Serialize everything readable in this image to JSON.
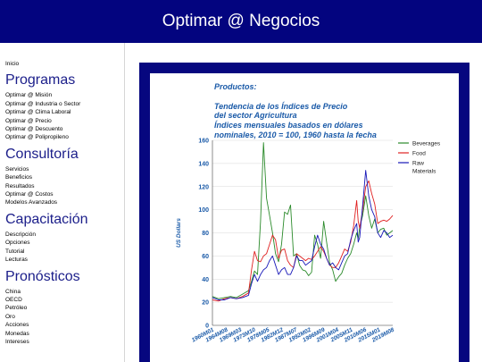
{
  "header": {
    "title": "Optimar @ Negocios"
  },
  "sidebar": {
    "home": "Inicio",
    "sections": [
      {
        "heading": "Programas",
        "items": [
          "Optimar @ Misión",
          "Optimar @ Industria o Sector",
          "Optimar @ Clima Laboral",
          "Optimar @ Precio",
          "Optimar @ Descuento",
          "Optimar @ Polipropileno"
        ]
      },
      {
        "heading": "Consultoría",
        "items": [
          "Servicios",
          "Beneficios",
          "Resultados",
          "Optimar @ Costos",
          "Modelos Avanzados"
        ]
      },
      {
        "heading": "Capacitación",
        "items": [
          "Descripción",
          "Opciones",
          "Tutorial",
          "Lecturas"
        ]
      },
      {
        "heading": "Pronósticos",
        "items": [
          "China",
          "OECD",
          "Petróleo",
          "Oro",
          "Acciones",
          "Monedas",
          "Intereses"
        ]
      }
    ]
  },
  "chart_data": {
    "type": "line",
    "title": [
      "Productos:",
      "",
      "Tendencia de los Índices de Precio",
      "del sector Agricultura",
      "Índices mensuales basados en dólares",
      "nominales, 2010 = 100, 1960 hasta la fecha"
    ],
    "xlabel": "",
    "ylabel": "US Dollars",
    "ylim": [
      0,
      160
    ],
    "yticks": [
      0,
      20,
      40,
      60,
      80,
      100,
      120,
      140,
      160
    ],
    "xticks": [
      "1960M01",
      "1964M08",
      "1969M03",
      "1973M10",
      "1978M05",
      "1982M12",
      "1987M07",
      "1992M02",
      "1996M09",
      "2001M04",
      "2005M11",
      "2010M06",
      "2015M01",
      "2019M08"
    ],
    "legend_position": "top-right",
    "x": [
      1960,
      1962,
      1964,
      1966,
      1968,
      1970,
      1972,
      1973,
      1974,
      1975,
      1976,
      1977,
      1978,
      1979,
      1980,
      1981,
      1982,
      1983,
      1984,
      1985,
      1986,
      1987,
      1988,
      1989,
      1990,
      1991,
      1992,
      1993,
      1994,
      1995,
      1996,
      1997,
      1998,
      1999,
      2000,
      2001,
      2002,
      2003,
      2004,
      2005,
      2006,
      2007,
      2008,
      2008.5,
      2009,
      2010,
      2011,
      2012,
      2013,
      2014,
      2015,
      2016,
      2017,
      2018,
      2019,
      2020
    ],
    "series": [
      {
        "name": "Beverages",
        "color": "#2a8a2a",
        "values": [
          25,
          23,
          24,
          25,
          24,
          27,
          30,
          38,
          47,
          44,
          90,
          158,
          110,
          95,
          80,
          62,
          55,
          70,
          98,
          96,
          104,
          60,
          62,
          52,
          48,
          47,
          43,
          46,
          78,
          70,
          58,
          90,
          72,
          54,
          48,
          38,
          42,
          45,
          52,
          58,
          62,
          70,
          80,
          75,
          85,
          95,
          112,
          95,
          84,
          92,
          80,
          83,
          84,
          78,
          80,
          82
        ]
      },
      {
        "name": "Food",
        "color": "#e02020",
        "values": [
          22,
          21,
          23,
          24,
          23,
          25,
          28,
          48,
          64,
          56,
          55,
          60,
          62,
          70,
          78,
          74,
          58,
          65,
          66,
          56,
          52,
          50,
          62,
          60,
          58,
          56,
          58,
          57,
          60,
          64,
          68,
          64,
          58,
          52,
          50,
          50,
          54,
          60,
          66,
          64,
          72,
          86,
          108,
          90,
          84,
          100,
          120,
          125,
          114,
          105,
          88,
          90,
          91,
          90,
          92,
          95
        ]
      },
      {
        "name": "Raw Materials",
        "color": "#1818b8",
        "values": [
          24,
          22,
          22,
          24,
          23,
          24,
          26,
          36,
          44,
          38,
          44,
          48,
          50,
          56,
          60,
          52,
          44,
          48,
          50,
          44,
          44,
          50,
          60,
          56,
          56,
          52,
          54,
          56,
          68,
          78,
          70,
          66,
          58,
          52,
          54,
          50,
          48,
          54,
          60,
          62,
          74,
          82,
          88,
          72,
          76,
          104,
          134,
          112,
          100,
          94,
          80,
          76,
          82,
          80,
          76,
          78
        ]
      }
    ]
  }
}
